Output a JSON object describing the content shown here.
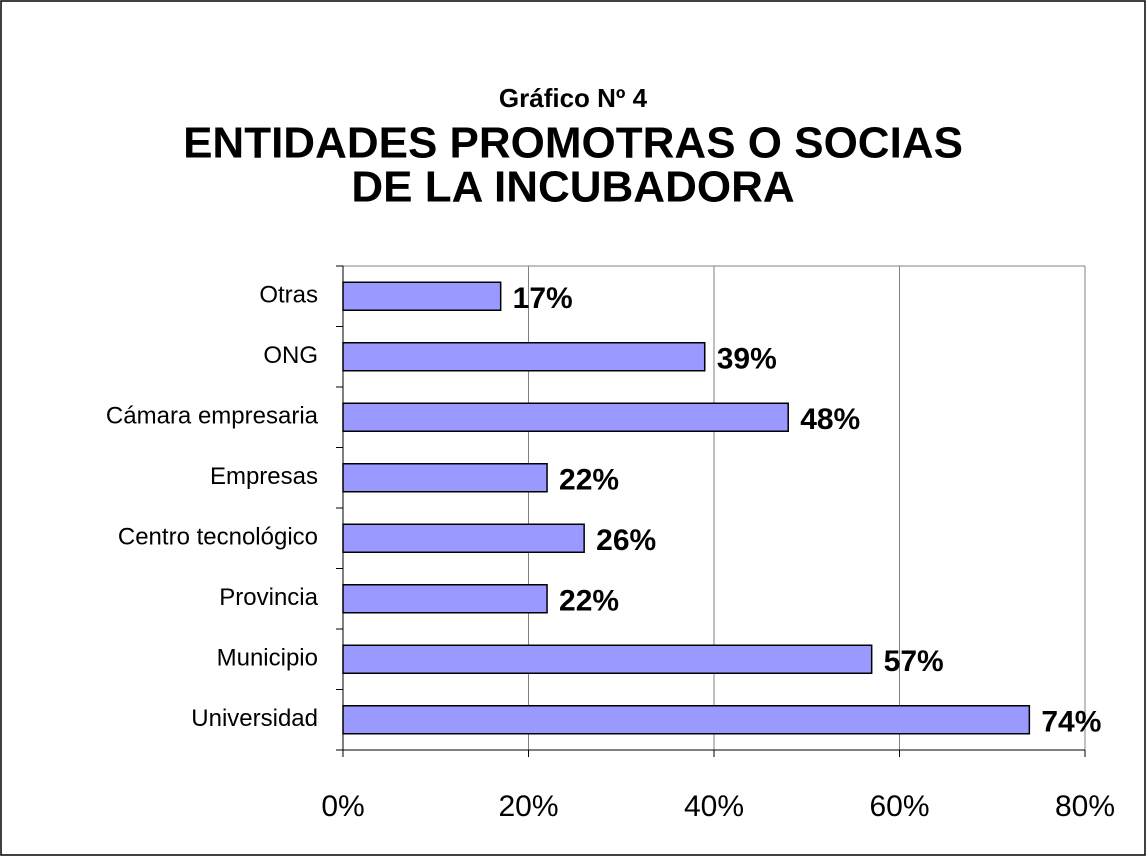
{
  "chart_data": {
    "type": "bar",
    "orientation": "horizontal",
    "subtitle": "Gráfico Nº 4",
    "title_lines": [
      "ENTIDADES PROMOTRAS O SOCIAS",
      "DE LA INCUBADORA"
    ],
    "categories": [
      "Otras",
      "ONG",
      "Cámara empresaria",
      "Empresas",
      "Centro tecnológico",
      "Provincia",
      "Municipio",
      "Universidad"
    ],
    "values": [
      17,
      39,
      48,
      22,
      26,
      22,
      57,
      74
    ],
    "value_labels": [
      "17%",
      "39%",
      "48%",
      "22%",
      "26%",
      "22%",
      "57%",
      "74%"
    ],
    "color": "#9999ff",
    "xlim": [
      0,
      80
    ],
    "xticks": [
      {
        "value": 0,
        "label": "0%"
      },
      {
        "value": 20,
        "label": "20%"
      },
      {
        "value": 40,
        "label": "40%"
      },
      {
        "value": 60,
        "label": "60%"
      },
      {
        "value": 80,
        "label": "80%"
      }
    ],
    "grid": true
  }
}
